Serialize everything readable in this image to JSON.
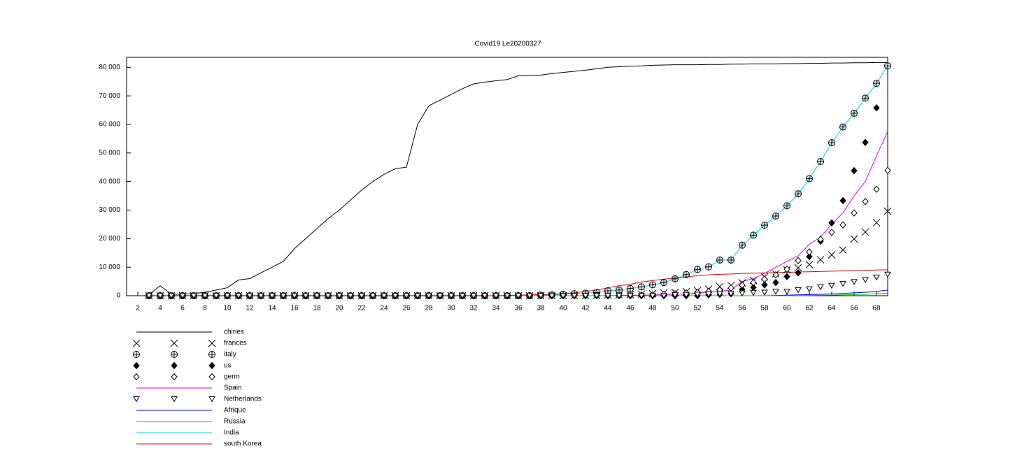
{
  "chart_data": {
    "type": "line",
    "title": "Covid19 Le20200327",
    "x": [
      3,
      4,
      5,
      6,
      7,
      8,
      9,
      10,
      11,
      12,
      13,
      14,
      15,
      16,
      17,
      18,
      19,
      20,
      21,
      22,
      23,
      24,
      25,
      26,
      27,
      28,
      29,
      30,
      31,
      32,
      33,
      34,
      35,
      36,
      37,
      38,
      39,
      40,
      41,
      42,
      43,
      44,
      45,
      46,
      47,
      48,
      49,
      50,
      51,
      52,
      53,
      54,
      55,
      56,
      57,
      58,
      59,
      60,
      61,
      62,
      63,
      64,
      65,
      66,
      67,
      68,
      69
    ],
    "xlim": [
      1,
      69
    ],
    "xticks": [
      2,
      4,
      6,
      8,
      10,
      12,
      14,
      16,
      18,
      20,
      22,
      24,
      26,
      28,
      30,
      32,
      34,
      36,
      38,
      40,
      42,
      44,
      46,
      48,
      50,
      52,
      54,
      56,
      58,
      60,
      62,
      64,
      66,
      68
    ],
    "ylim": [
      0,
      83500
    ],
    "yticks": [
      0,
      {
        "value": 10000,
        "label": "10 000"
      },
      {
        "value": 20000,
        "label": "20 000"
      },
      {
        "value": 30000,
        "label": "30 000"
      },
      {
        "value": 40000,
        "label": "40 000"
      },
      {
        "value": 50000,
        "label": "50 000"
      },
      {
        "value": 60000,
        "label": "60 000"
      },
      {
        "value": 70000,
        "label": "70 000"
      },
      {
        "value": 80000,
        "label": "80 000"
      }
    ],
    "series": [
      {
        "name": "chines",
        "color": "#000000",
        "marker": "line",
        "values": [
          500,
          3500,
          500,
          500,
          800,
          1200,
          2000,
          2800,
          5500,
          6000,
          8000,
          10000,
          12000,
          16500,
          20000,
          23500,
          27000,
          30000,
          33500,
          37000,
          40000,
          42500,
          44500,
          45000,
          60000,
          66500,
          68500,
          70500,
          72500,
          74200,
          74800,
          75300,
          75700,
          77000,
          77200,
          77300,
          77800,
          78200,
          78600,
          79000,
          79500,
          80000,
          80200,
          80400,
          80500,
          80700,
          80800,
          80900,
          80900,
          80900,
          81000,
          81000,
          81100,
          81100,
          81200,
          81200,
          81200,
          81300,
          81300,
          81400,
          81400,
          81500,
          81500,
          81600,
          81600,
          81700,
          81700
        ]
      },
      {
        "name": "frances",
        "color": "#000000",
        "marker": "x",
        "values": [
          0,
          0,
          0,
          0,
          0,
          0,
          0,
          0,
          0,
          0,
          0,
          0,
          0,
          0,
          0,
          0,
          0,
          0,
          0,
          0,
          0,
          0,
          0,
          0,
          0,
          0,
          0,
          0,
          0,
          0,
          0,
          0,
          0,
          0,
          0,
          0,
          0,
          0,
          0,
          0,
          100,
          200,
          300,
          400,
          600,
          700,
          1000,
          1100,
          1400,
          1800,
          2300,
          3200,
          3600,
          4500,
          5400,
          6600,
          7700,
          9100,
          9800,
          10900,
          12600,
          14300,
          16000,
          19900,
          22300,
          25600,
          29600
        ]
      },
      {
        "name": "italy",
        "color": "#000000",
        "marker": "circle-plus",
        "values": [
          0,
          0,
          0,
          0,
          0,
          0,
          0,
          0,
          0,
          0,
          0,
          0,
          0,
          0,
          0,
          0,
          0,
          0,
          0,
          0,
          0,
          0,
          0,
          0,
          0,
          0,
          0,
          0,
          0,
          0,
          0,
          0,
          0,
          0,
          0,
          200,
          300,
          500,
          700,
          900,
          1100,
          1700,
          2000,
          2500,
          3100,
          3800,
          4600,
          5900,
          7400,
          9200,
          10100,
          12500,
          12500,
          17700,
          21200,
          24700,
          27900,
          31500,
          35700,
          41000,
          47000,
          53600,
          59100,
          63900,
          69200,
          74400,
          80500
        ]
      },
      {
        "name": "us",
        "color": "#000000",
        "marker": "diamond-filled",
        "values": [
          0,
          0,
          0,
          0,
          0,
          0,
          0,
          0,
          0,
          0,
          0,
          0,
          0,
          0,
          0,
          0,
          0,
          0,
          0,
          0,
          0,
          0,
          0,
          0,
          0,
          0,
          0,
          0,
          0,
          0,
          0,
          0,
          0,
          0,
          0,
          0,
          0,
          0,
          0,
          0,
          0,
          0,
          0,
          0,
          0,
          0,
          0,
          0,
          0,
          0,
          300,
          500,
          700,
          2200,
          2900,
          3800,
          4600,
          6700,
          8000,
          13700,
          19100,
          25500,
          33300,
          43800,
          53700,
          65800,
          null
        ]
      },
      {
        "name": "germ",
        "color": "#000000",
        "marker": "diamond",
        "values": [
          0,
          0,
          0,
          0,
          0,
          0,
          0,
          0,
          0,
          0,
          0,
          0,
          0,
          0,
          0,
          0,
          0,
          0,
          0,
          0,
          0,
          0,
          0,
          0,
          0,
          0,
          0,
          0,
          0,
          0,
          0,
          0,
          0,
          0,
          0,
          0,
          0,
          0,
          0,
          0,
          0,
          0,
          0,
          100,
          200,
          300,
          500,
          700,
          1000,
          1200,
          1500,
          2000,
          2700,
          3700,
          4600,
          5800,
          7300,
          9300,
          12300,
          15300,
          19800,
          22200,
          24800,
          29000,
          33000,
          37300,
          43900
        ]
      },
      {
        "name": "Spain",
        "color": "#e000e0",
        "marker": "line",
        "values": [
          null,
          null,
          null,
          null,
          null,
          null,
          null,
          null,
          null,
          null,
          null,
          null,
          null,
          null,
          null,
          null,
          null,
          null,
          null,
          null,
          null,
          null,
          null,
          null,
          null,
          null,
          null,
          null,
          null,
          null,
          0,
          0,
          0,
          0,
          0,
          0,
          0,
          0,
          0,
          0,
          0,
          0,
          100,
          150,
          200,
          250,
          400,
          500,
          600,
          1000,
          1200,
          1600,
          2000,
          5000,
          6000,
          7800,
          10000,
          12000,
          14000,
          18000,
          20500,
          25000,
          29000,
          35000,
          40000,
          49000,
          57500
        ]
      },
      {
        "name": "Netherlands",
        "color": "#000000",
        "marker": "triangle-down",
        "values": [
          0,
          0,
          0,
          0,
          0,
          0,
          0,
          0,
          0,
          0,
          0,
          0,
          0,
          0,
          0,
          0,
          0,
          0,
          0,
          0,
          0,
          0,
          0,
          0,
          0,
          0,
          0,
          0,
          0,
          0,
          0,
          0,
          0,
          0,
          0,
          0,
          0,
          0,
          0,
          0,
          0,
          0,
          0,
          0,
          0,
          0,
          0,
          200,
          300,
          400,
          500,
          600,
          700,
          800,
          1000,
          1100,
          1400,
          1400,
          2000,
          2300,
          3000,
          3500,
          4200,
          4800,
          5500,
          6400,
          7400
        ]
      },
      {
        "name": "Afrique",
        "color": "#0000ff",
        "marker": "line",
        "values": [
          null,
          null,
          null,
          null,
          null,
          null,
          null,
          null,
          null,
          null,
          null,
          null,
          null,
          null,
          null,
          null,
          null,
          null,
          null,
          null,
          null,
          null,
          null,
          null,
          null,
          null,
          null,
          null,
          null,
          null,
          0,
          0,
          0,
          0,
          0,
          0,
          0,
          0,
          0,
          0,
          0,
          0,
          0,
          0,
          0,
          0,
          0,
          0,
          0,
          0,
          0,
          0,
          0,
          0,
          0,
          0,
          100,
          200,
          300,
          400,
          500,
          600,
          800,
          1000,
          1200,
          1500,
          2000
        ]
      },
      {
        "name": "Russia",
        "color": "#00c000",
        "marker": "line",
        "values": [
          null,
          null,
          null,
          null,
          null,
          null,
          null,
          null,
          null,
          null,
          null,
          null,
          null,
          null,
          null,
          null,
          null,
          null,
          null,
          null,
          null,
          null,
          null,
          null,
          null,
          null,
          null,
          null,
          null,
          null,
          0,
          0,
          0,
          0,
          0,
          0,
          0,
          0,
          0,
          0,
          0,
          0,
          0,
          0,
          0,
          0,
          0,
          0,
          0,
          0,
          0,
          0,
          0,
          0,
          0,
          0,
          0,
          0,
          50,
          100,
          150,
          200,
          300,
          400,
          500,
          700,
          900
        ]
      },
      {
        "name": "India",
        "color": "#00d0e0",
        "marker": "line",
        "values": [
          null,
          null,
          null,
          null,
          null,
          null,
          null,
          null,
          null,
          null,
          null,
          null,
          null,
          null,
          null,
          null,
          null,
          null,
          null,
          null,
          null,
          null,
          null,
          null,
          null,
          null,
          null,
          null,
          null,
          null,
          0,
          0,
          0,
          0,
          0,
          200,
          300,
          500,
          700,
          900,
          1100,
          1700,
          2000,
          2500,
          3100,
          3800,
          4600,
          5900,
          7400,
          9200,
          10100,
          12500,
          12500,
          17700,
          21200,
          24700,
          27900,
          31500,
          35700,
          41000,
          47000,
          53600,
          59100,
          63900,
          69200,
          74400,
          80500
        ]
      },
      {
        "name": "south Korea",
        "color": "#e00000",
        "marker": "line",
        "values": [
          null,
          null,
          null,
          null,
          null,
          null,
          null,
          null,
          null,
          null,
          null,
          null,
          null,
          null,
          null,
          null,
          null,
          null,
          null,
          null,
          null,
          null,
          null,
          null,
          null,
          null,
          null,
          null,
          null,
          null,
          0,
          0,
          100,
          200,
          300,
          400,
          500,
          700,
          1000,
          1500,
          2000,
          2800,
          3500,
          4000,
          4800,
          5300,
          5800,
          6200,
          6600,
          7000,
          7300,
          7500,
          7600,
          7800,
          7900,
          8000,
          8100,
          8200,
          8300,
          8400,
          8500,
          8600,
          8700,
          8800,
          8900,
          9000,
          9100
        ]
      }
    ]
  }
}
